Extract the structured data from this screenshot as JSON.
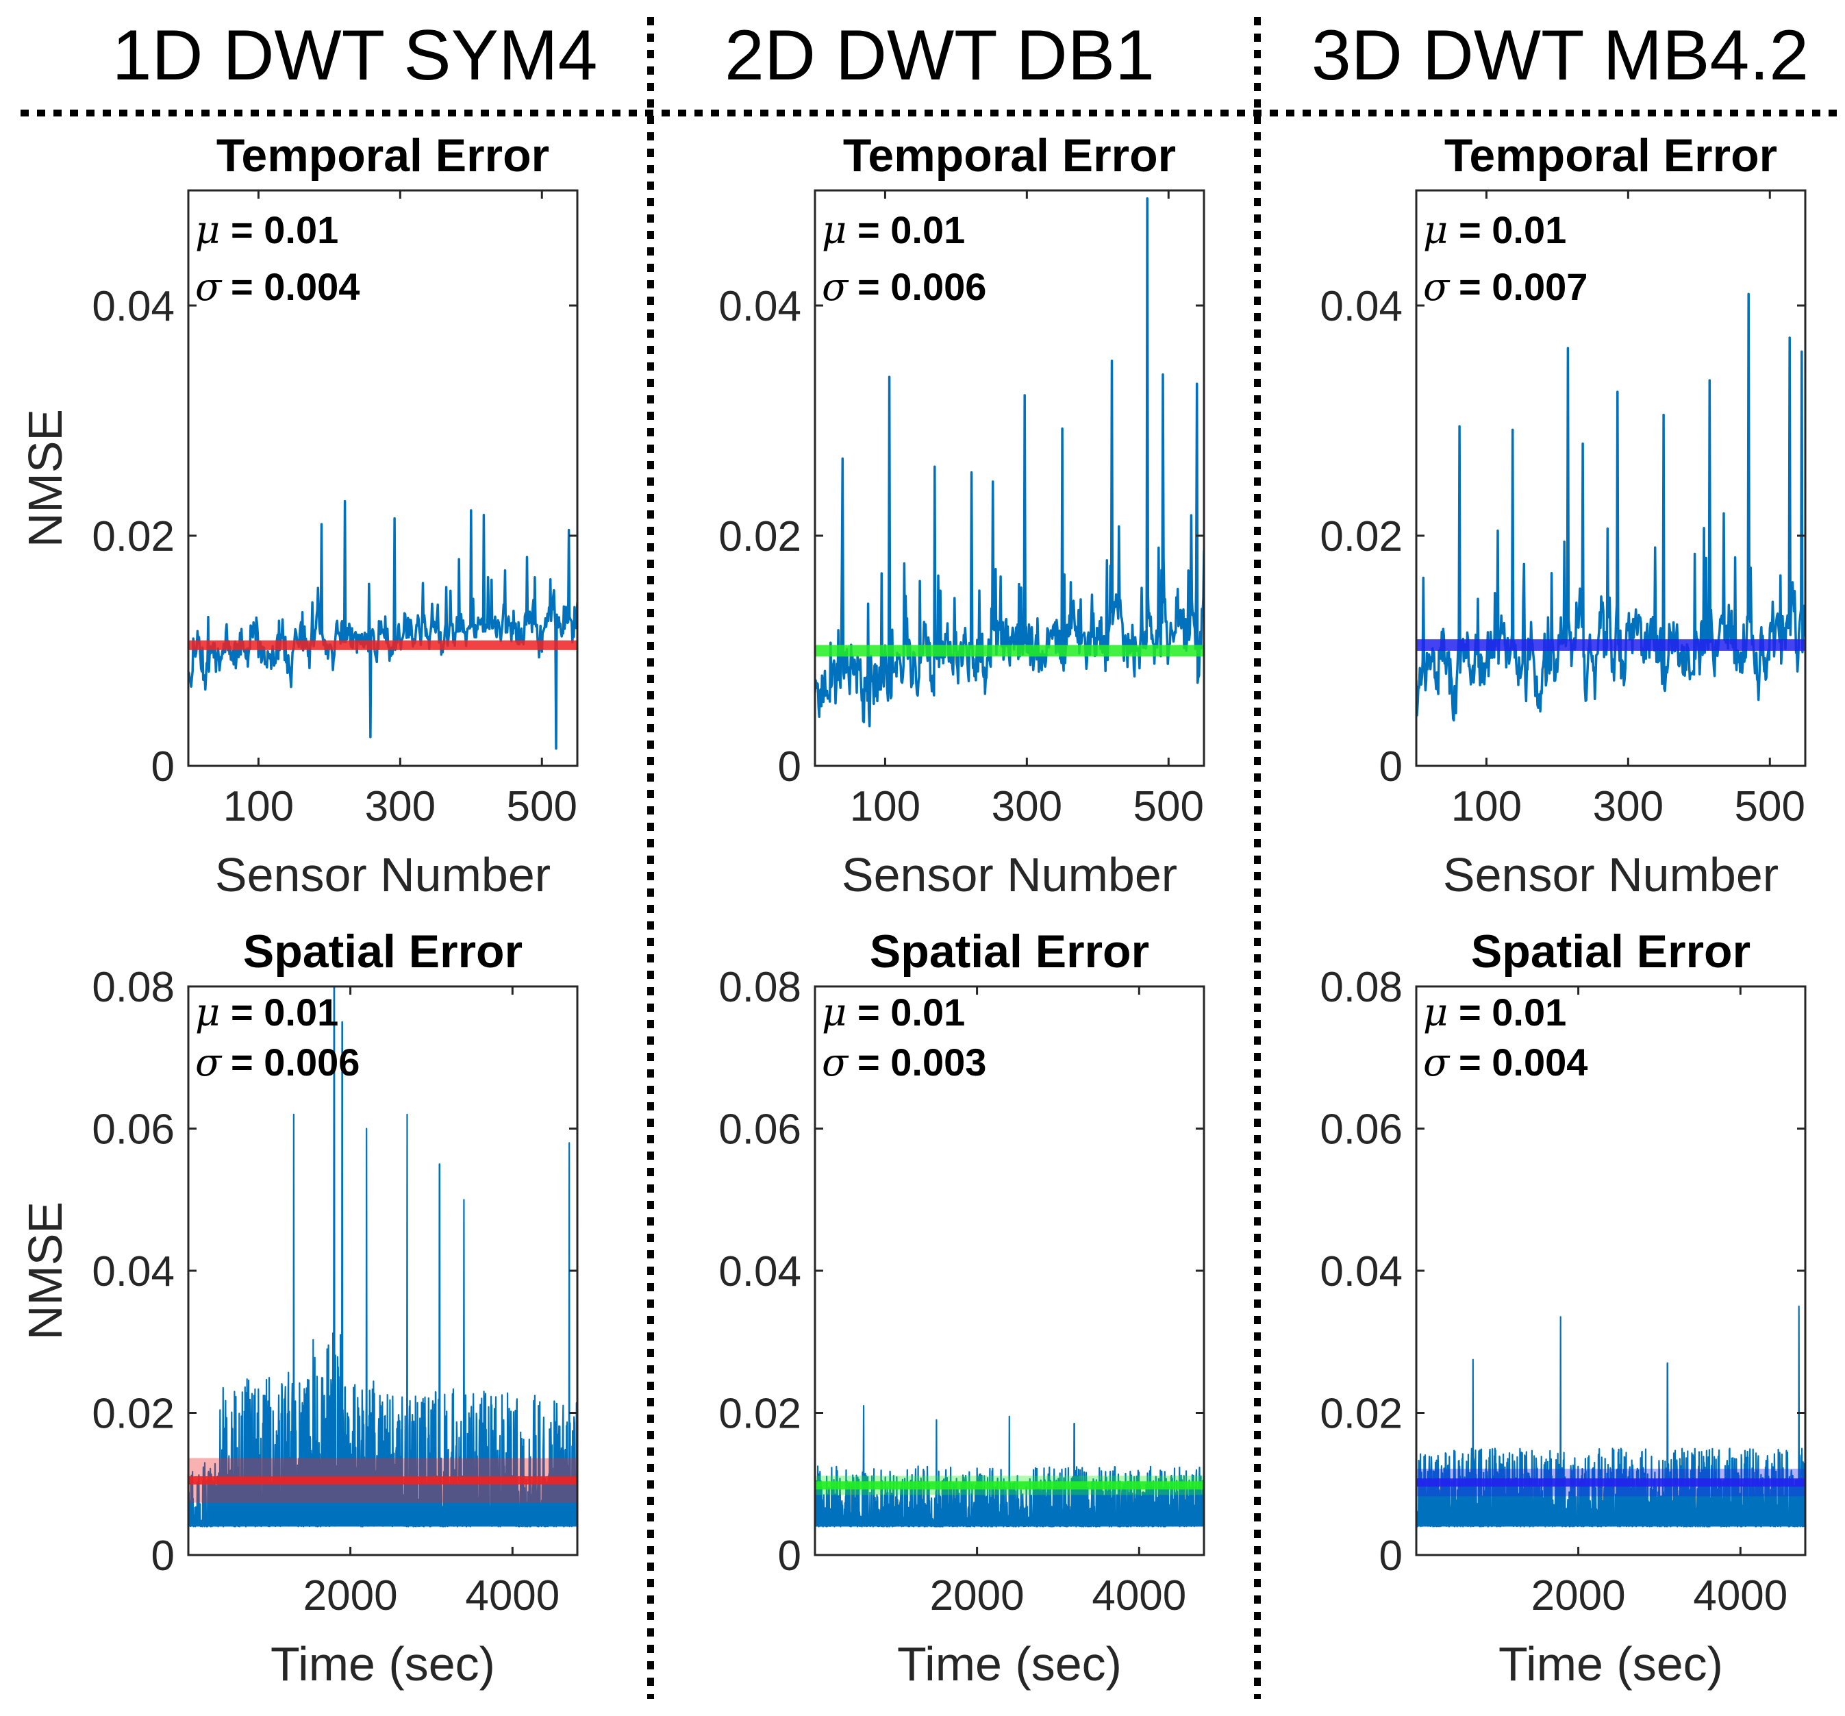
{
  "columns": [
    {
      "title": "1D DWT SYM4",
      "line_color": "#ee2222"
    },
    {
      "title": "2D DWT DB1",
      "line_color": "#22ee22"
    },
    {
      "title": "3D DWT MB4.2",
      "line_color": "#2222ee"
    }
  ],
  "series_color": "#0072bd",
  "chart_data": [
    {
      "type": "line",
      "panel": "temporal",
      "column": 0,
      "title": "Temporal Error",
      "xlabel": "Sensor Number",
      "ylabel": "NMSE",
      "xlim": [
        1,
        550
      ],
      "ylim": [
        0,
        0.05
      ],
      "xticks": [
        100,
        300,
        500
      ],
      "yticks": [
        0,
        0.02,
        0.04
      ],
      "ytick_labels": [
        "0",
        "0.02",
        "0.04"
      ],
      "xtick_labels": [
        "100",
        "300",
        "500"
      ],
      "mu_label": "μ",
      "mu_value": "= 0.01",
      "sigma_label": "σ",
      "sigma_value": "= 0.004",
      "mean": 0.0105,
      "band": 0.0004,
      "peaks": [
        [
          189,
          0.021
        ],
        [
          222,
          0.023
        ],
        [
          292,
          0.0215
        ],
        [
          400,
          0.0222
        ],
        [
          418,
          0.0218
        ],
        [
          538,
          0.0205
        ],
        [
          520,
          0.0015
        ],
        [
          258,
          0.0025
        ]
      ],
      "baseline": 0.009,
      "noise": 0.0025,
      "trend": 0.004,
      "n": 550,
      "seed": 11
    },
    {
      "type": "line",
      "panel": "temporal",
      "column": 1,
      "title": "Temporal Error",
      "xlabel": "Sensor Number",
      "ylabel": "",
      "xlim": [
        1,
        550
      ],
      "ylim": [
        0,
        0.05
      ],
      "xticks": [
        100,
        300,
        500
      ],
      "yticks": [
        0,
        0.02,
        0.04
      ],
      "ytick_labels": [
        "0",
        "0.02",
        "0.04"
      ],
      "xtick_labels": [
        "100",
        "300",
        "500"
      ],
      "mu_label": "μ",
      "mu_value": "= 0.01",
      "sigma_label": "σ",
      "sigma_value": "= 0.006",
      "mean": 0.01,
      "band": 0.0005,
      "peaks": [
        [
          40,
          0.0267
        ],
        [
          106,
          0.0338
        ],
        [
          170,
          0.026
        ],
        [
          222,
          0.0255
        ],
        [
          252,
          0.0247
        ],
        [
          297,
          0.0322
        ],
        [
          350,
          0.0293
        ],
        [
          420,
          0.0352
        ],
        [
          470,
          0.0493
        ],
        [
          492,
          0.034
        ],
        [
          540,
          0.0332
        ]
      ],
      "baseline": 0.0075,
      "noise": 0.004,
      "trend": 0.005,
      "n": 550,
      "seed": 23
    },
    {
      "type": "line",
      "panel": "temporal",
      "column": 2,
      "title": "Temporal Error",
      "xlabel": "Sensor Number",
      "ylabel": "",
      "xlim": [
        1,
        550
      ],
      "ylim": [
        0,
        0.05
      ],
      "xticks": [
        100,
        300,
        500
      ],
      "yticks": [
        0,
        0.02,
        0.04
      ],
      "ytick_labels": [
        "0",
        "0.02",
        "0.04"
      ],
      "xtick_labels": [
        "100",
        "300",
        "500"
      ],
      "mu_label": "μ",
      "mu_value": "= 0.01",
      "sigma_label": "σ",
      "sigma_value": "= 0.007",
      "mean": 0.0105,
      "band": 0.0005,
      "peaks": [
        [
          62,
          0.0295
        ],
        [
          137,
          0.0292
        ],
        [
          215,
          0.0363
        ],
        [
          236,
          0.028
        ],
        [
          285,
          0.0325
        ],
        [
          350,
          0.0305
        ],
        [
          415,
          0.0335
        ],
        [
          470,
          0.041
        ],
        [
          528,
          0.0372
        ],
        [
          545,
          0.036
        ]
      ],
      "baseline": 0.008,
      "noise": 0.0045,
      "trend": 0.004,
      "n": 550,
      "seed": 37
    },
    {
      "type": "line",
      "panel": "spatial",
      "column": 0,
      "title": "Spatial Error",
      "xlabel": "Time (sec)",
      "ylabel": "NMSE",
      "xlim": [
        1,
        4800
      ],
      "ylim": [
        0,
        0.08
      ],
      "xticks": [
        2000,
        4000
      ],
      "yticks": [
        0,
        0.02,
        0.04,
        0.06,
        0.08
      ],
      "ytick_labels": [
        "0",
        "0.02",
        "0.04",
        "0.06",
        "0.08"
      ],
      "xtick_labels": [
        "2000",
        "4000"
      ],
      "mu_label": "μ",
      "mu_value": "= 0.01",
      "sigma_label": "σ",
      "sigma_value": "= 0.006",
      "mean": 0.0105,
      "band": 0.003,
      "peaks": [
        [
          1300,
          0.062
        ],
        [
          1800,
          0.08
        ],
        [
          1900,
          0.075
        ],
        [
          2200,
          0.06
        ],
        [
          2700,
          0.062
        ],
        [
          3100,
          0.055
        ],
        [
          3400,
          0.05
        ],
        [
          4700,
          0.058
        ]
      ],
      "baseline": 0.006,
      "noise": 0.02,
      "trend": 0.0,
      "n": 1400,
      "seed": 51
    },
    {
      "type": "line",
      "panel": "spatial",
      "column": 1,
      "title": "Spatial Error",
      "xlabel": "Time (sec)",
      "ylabel": "",
      "xlim": [
        1,
        4800
      ],
      "ylim": [
        0,
        0.08
      ],
      "xticks": [
        2000,
        4000
      ],
      "yticks": [
        0,
        0.02,
        0.04,
        0.06,
        0.08
      ],
      "ytick_labels": [
        "0",
        "0.02",
        "0.04",
        "0.06",
        "0.08"
      ],
      "xtick_labels": [
        "2000",
        "4000"
      ],
      "mu_label": "μ",
      "mu_value": "= 0.01",
      "sigma_label": "σ",
      "sigma_value": "= 0.003",
      "mean": 0.0098,
      "band": 0.0012,
      "peaks": [
        [
          600,
          0.021
        ],
        [
          1500,
          0.019
        ],
        [
          2400,
          0.0195
        ],
        [
          3200,
          0.0185
        ]
      ],
      "baseline": 0.006,
      "noise": 0.0085,
      "trend": 0.0,
      "n": 1400,
      "seed": 63
    },
    {
      "type": "line",
      "panel": "spatial",
      "column": 2,
      "title": "Spatial Error",
      "xlabel": "Time (sec)",
      "ylabel": "",
      "xlim": [
        1,
        4800
      ],
      "ylim": [
        0,
        0.08
      ],
      "xticks": [
        2000,
        4000
      ],
      "yticks": [
        0,
        0.02,
        0.04,
        0.06,
        0.08
      ],
      "ytick_labels": [
        "0",
        "0.02",
        "0.04",
        "0.06",
        "0.08"
      ],
      "xtick_labels": [
        "2000",
        "4000"
      ],
      "mu_label": "μ",
      "mu_value": "= 0.01",
      "sigma_label": "σ",
      "sigma_value": "= 0.004",
      "mean": 0.0102,
      "band": 0.0018,
      "peaks": [
        [
          700,
          0.0275
        ],
        [
          1780,
          0.0335
        ],
        [
          3100,
          0.027
        ],
        [
          4720,
          0.035
        ]
      ],
      "baseline": 0.006,
      "noise": 0.011,
      "trend": 0.0,
      "n": 1400,
      "seed": 77
    }
  ]
}
